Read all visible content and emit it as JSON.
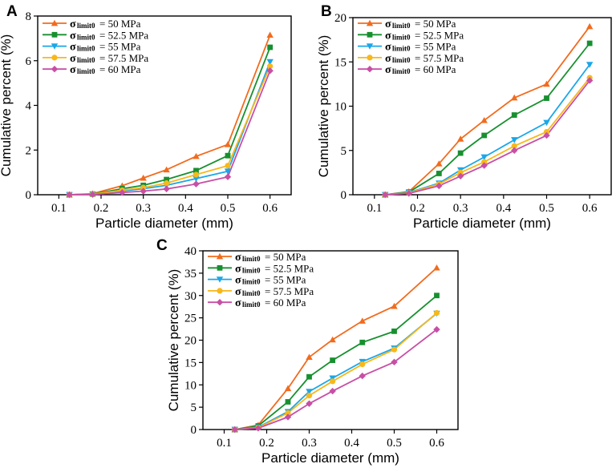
{
  "figure": {
    "colors": {
      "50": "#F26B1D",
      "52.5": "#17902F",
      "55": "#1AA7E8",
      "57.5": "#F7B81A",
      "60": "#C84FA5"
    }
  },
  "chart_data": [
    {
      "panel": "A",
      "type": "line",
      "xlabel": "Particle diameter (mm)",
      "ylabel": "Cumulative percent (%)",
      "xlim": [
        0.05,
        0.65
      ],
      "ylim": [
        0,
        8
      ],
      "xticks": [
        "0.1",
        "0.2",
        "0.3",
        "0.4",
        "0.5",
        "0.6"
      ],
      "yticks": [
        "0",
        "2",
        "4",
        "6",
        "8"
      ],
      "x": [
        0.125,
        0.18,
        0.25,
        0.3,
        0.355,
        0.425,
        0.5,
        0.6
      ],
      "legend_position": "top-left",
      "series": [
        {
          "sigma": "σ",
          "sub": "limit0",
          "label": " = 50 MPa",
          "color_key": "50",
          "marker": "triangle-up",
          "values": [
            0,
            0.05,
            0.4,
            0.75,
            1.12,
            1.72,
            2.25,
            7.15
          ]
        },
        {
          "sigma": "σ",
          "sub": "limit0",
          "label": " = 52.5 MPa",
          "color_key": "52.5",
          "marker": "square",
          "values": [
            0,
            0.03,
            0.27,
            0.42,
            0.68,
            1.08,
            1.75,
            6.6
          ]
        },
        {
          "sigma": "σ",
          "sub": "limit0",
          "label": " = 55 MPa",
          "color_key": "55",
          "marker": "triangle-down",
          "values": [
            0,
            0.02,
            0.17,
            0.27,
            0.42,
            0.72,
            1.05,
            5.95
          ]
        },
        {
          "sigma": "σ",
          "sub": "limit0",
          "label": " = 57.5 MPa",
          "color_key": "57.5",
          "marker": "circle",
          "values": [
            0,
            0.02,
            0.2,
            0.32,
            0.52,
            0.9,
            1.3,
            5.75
          ]
        },
        {
          "sigma": "σ",
          "sub": "limit0",
          "label": " = 60 MPa",
          "color_key": "60",
          "marker": "diamond",
          "values": [
            0,
            0.01,
            0.1,
            0.16,
            0.26,
            0.48,
            0.8,
            5.55
          ]
        }
      ]
    },
    {
      "panel": "B",
      "type": "line",
      "xlabel": "Particle diameter (mm)",
      "ylabel": "Cumulative percent (%)",
      "xlim": [
        0.05,
        0.65
      ],
      "ylim": [
        0,
        20
      ],
      "xticks": [
        "0.1",
        "0.2",
        "0.3",
        "0.4",
        "0.5",
        "0.6"
      ],
      "yticks": [
        "0",
        "5",
        "10",
        "15",
        "20"
      ],
      "x": [
        0.125,
        0.18,
        0.25,
        0.3,
        0.355,
        0.425,
        0.5,
        0.6
      ],
      "legend_position": "top-left",
      "series": [
        {
          "sigma": "σ",
          "sub": "limit0",
          "label": " = 50 MPa",
          "color_key": "50",
          "marker": "triangle-up",
          "values": [
            0,
            0.35,
            3.5,
            6.3,
            8.4,
            10.95,
            12.5,
            19.0
          ]
        },
        {
          "sigma": "σ",
          "sub": "limit0",
          "label": " = 52.5 MPa",
          "color_key": "52.5",
          "marker": "square",
          "values": [
            0,
            0.3,
            2.4,
            4.7,
            6.7,
            9.0,
            10.9,
            17.1
          ]
        },
        {
          "sigma": "σ",
          "sub": "limit0",
          "label": " = 55 MPa",
          "color_key": "55",
          "marker": "triangle-down",
          "values": [
            0,
            0.25,
            1.3,
            2.8,
            4.25,
            6.2,
            8.15,
            14.7
          ]
        },
        {
          "sigma": "σ",
          "sub": "limit0",
          "label": " = 57.5 MPa",
          "color_key": "57.5",
          "marker": "circle",
          "values": [
            0,
            0.2,
            1.2,
            2.5,
            3.7,
            5.5,
            7.1,
            13.2
          ]
        },
        {
          "sigma": "σ",
          "sub": "limit0",
          "label": " = 60 MPa",
          "color_key": "60",
          "marker": "diamond",
          "values": [
            0,
            0.15,
            1.0,
            2.1,
            3.3,
            5.0,
            6.7,
            12.9
          ]
        }
      ]
    },
    {
      "panel": "C",
      "type": "line",
      "xlabel": "Particle diameter (mm)",
      "ylabel": "Cumulative percent (%)",
      "xlim": [
        0.05,
        0.65
      ],
      "ylim": [
        0,
        40
      ],
      "xticks": [
        "0.1",
        "0.2",
        "0.3",
        "0.4",
        "0.5",
        "0.6"
      ],
      "yticks": [
        "0",
        "5",
        "10",
        "15",
        "20",
        "25",
        "30",
        "35",
        "40"
      ],
      "x": [
        0.125,
        0.18,
        0.25,
        0.3,
        0.355,
        0.425,
        0.5,
        0.6
      ],
      "legend_position": "top-left",
      "series": [
        {
          "sigma": "σ",
          "sub": "limit0",
          "label": " = 50 MPa",
          "color_key": "50",
          "marker": "triangle-up",
          "values": [
            0,
            1.0,
            9.2,
            16.2,
            20.1,
            24.3,
            27.6,
            36.2
          ]
        },
        {
          "sigma": "σ",
          "sub": "limit0",
          "label": " = 52.5 MPa",
          "color_key": "52.5",
          "marker": "square",
          "values": [
            0,
            0.8,
            6.2,
            11.8,
            15.5,
            19.5,
            22.0,
            30.0
          ]
        },
        {
          "sigma": "σ",
          "sub": "limit0",
          "label": " = 55 MPa",
          "color_key": "55",
          "marker": "triangle-down",
          "values": [
            0,
            0.5,
            4.0,
            8.5,
            11.5,
            15.2,
            18.2,
            26.0
          ]
        },
        {
          "sigma": "σ",
          "sub": "limit0",
          "label": " = 57.5 MPa",
          "color_key": "57.5",
          "marker": "circle",
          "values": [
            0,
            0.4,
            3.7,
            7.6,
            10.8,
            14.6,
            17.9,
            26.1
          ]
        },
        {
          "sigma": "σ",
          "sub": "limit0",
          "label": " = 60 MPa",
          "color_key": "60",
          "marker": "diamond",
          "values": [
            0,
            0.3,
            2.8,
            5.8,
            8.6,
            12.0,
            15.1,
            22.4
          ]
        }
      ]
    }
  ]
}
